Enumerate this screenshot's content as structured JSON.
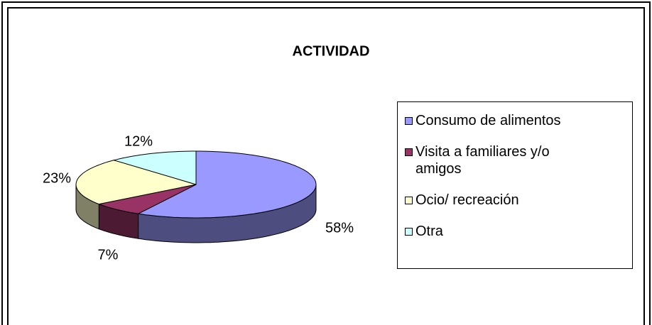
{
  "chart_data": {
    "type": "pie",
    "title": "ACTIVIDAD",
    "categories": [
      "Consumo de alimentos",
      "Visita a familiares y/o amigos",
      "Ocio/ recreación",
      "Otra"
    ],
    "values": [
      58,
      7,
      23,
      12
    ],
    "value_labels": [
      "58%",
      "7%",
      "23%",
      "12%"
    ],
    "colors": [
      "#9999ff",
      "#993366",
      "#ffffcc",
      "#ccffff"
    ],
    "legend": "right"
  }
}
